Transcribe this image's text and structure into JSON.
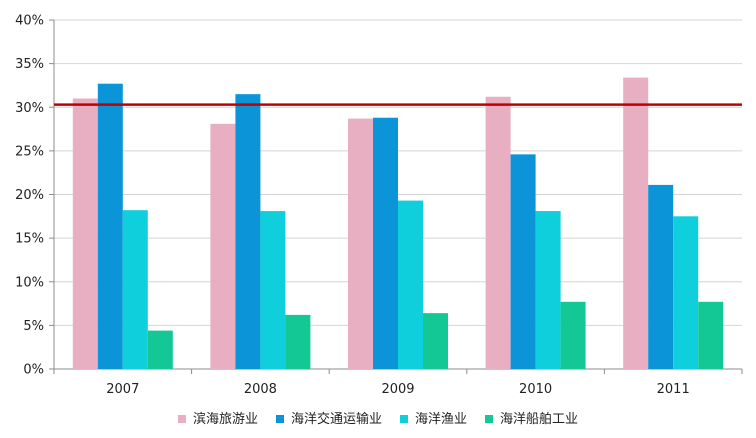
{
  "chart_data": {
    "type": "bar",
    "title": "",
    "xlabel": "",
    "ylabel": "",
    "categories": [
      "2007",
      "2008",
      "2009",
      "2010",
      "2011"
    ],
    "ylim": [
      0,
      0.4
    ],
    "y_ticks": [
      0,
      0.05,
      0.1,
      0.15,
      0.2,
      0.25,
      0.3,
      0.35,
      0.4
    ],
    "y_tick_labels": [
      "0%",
      "5%",
      "10%",
      "15%",
      "20%",
      "25%",
      "30%",
      "35%",
      "40%"
    ],
    "series": [
      {
        "name": "滨海旅游业",
        "color": "#e8aec1",
        "values": [
          0.31,
          0.281,
          0.287,
          0.312,
          0.334
        ]
      },
      {
        "name": "海洋交通运输业",
        "color": "#0b95d8",
        "values": [
          0.327,
          0.315,
          0.288,
          0.246,
          0.211
        ]
      },
      {
        "name": "海洋渔业",
        "color": "#10cfdc",
        "values": [
          0.182,
          0.181,
          0.193,
          0.181,
          0.175
        ]
      },
      {
        "name": "海洋船舶工业",
        "color": "#14c896",
        "values": [
          0.044,
          0.062,
          0.064,
          0.077,
          0.077
        ]
      }
    ],
    "reference_line": {
      "value": 0.303,
      "color": "#c00000"
    },
    "grid": "horizontal",
    "legend_position": "bottom"
  }
}
